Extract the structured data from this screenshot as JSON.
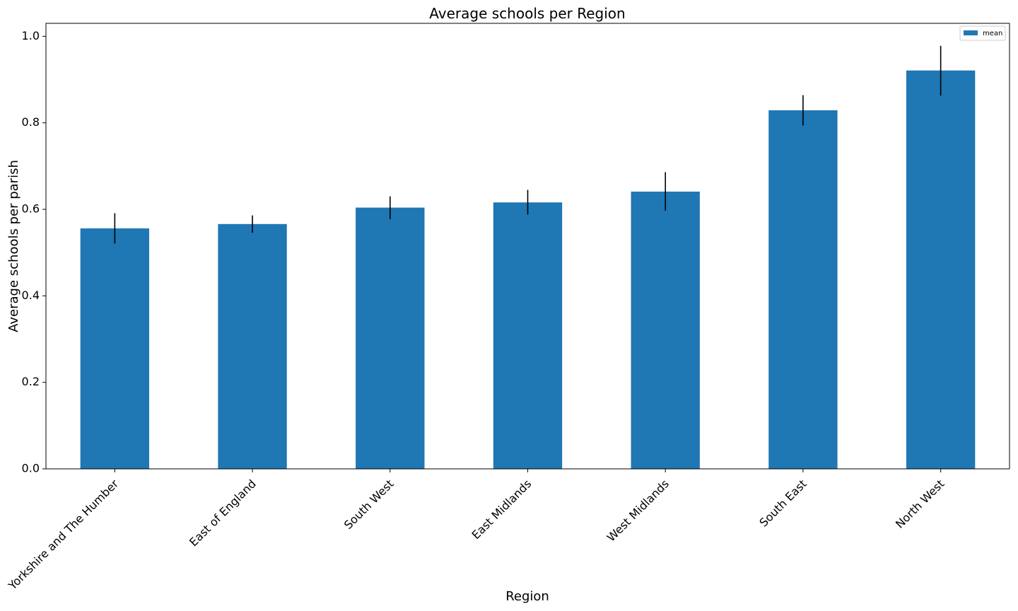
{
  "chart_data": {
    "type": "bar",
    "title": "Average schools per Region",
    "xlabel": "Region",
    "ylabel": "Average schools per parish",
    "categories": [
      "Yorkshire and The Humber",
      "East of England",
      "South West",
      "East Midlands",
      "West Midlands",
      "South East",
      "North West"
    ],
    "series": [
      {
        "name": "mean",
        "color": "#1f77b4",
        "values": [
          0.556,
          0.566,
          0.604,
          0.616,
          0.641,
          0.829,
          0.921
        ],
        "error_low": [
          0.521,
          0.546,
          0.577,
          0.588,
          0.597,
          0.794,
          0.863
        ],
        "error_high": [
          0.591,
          0.586,
          0.63,
          0.645,
          0.686,
          0.864,
          0.978
        ]
      }
    ],
    "ylim": [
      0,
      1.03
    ],
    "yticks": [
      0.0,
      0.2,
      0.4,
      0.6,
      0.8,
      1.0
    ],
    "ytick_labels": [
      "0.0",
      "0.2",
      "0.4",
      "0.6",
      "0.8",
      "1.0"
    ],
    "legend": {
      "placement": "top-right",
      "entries": [
        "mean"
      ]
    },
    "grid": false,
    "xtick_rotation": -45
  }
}
